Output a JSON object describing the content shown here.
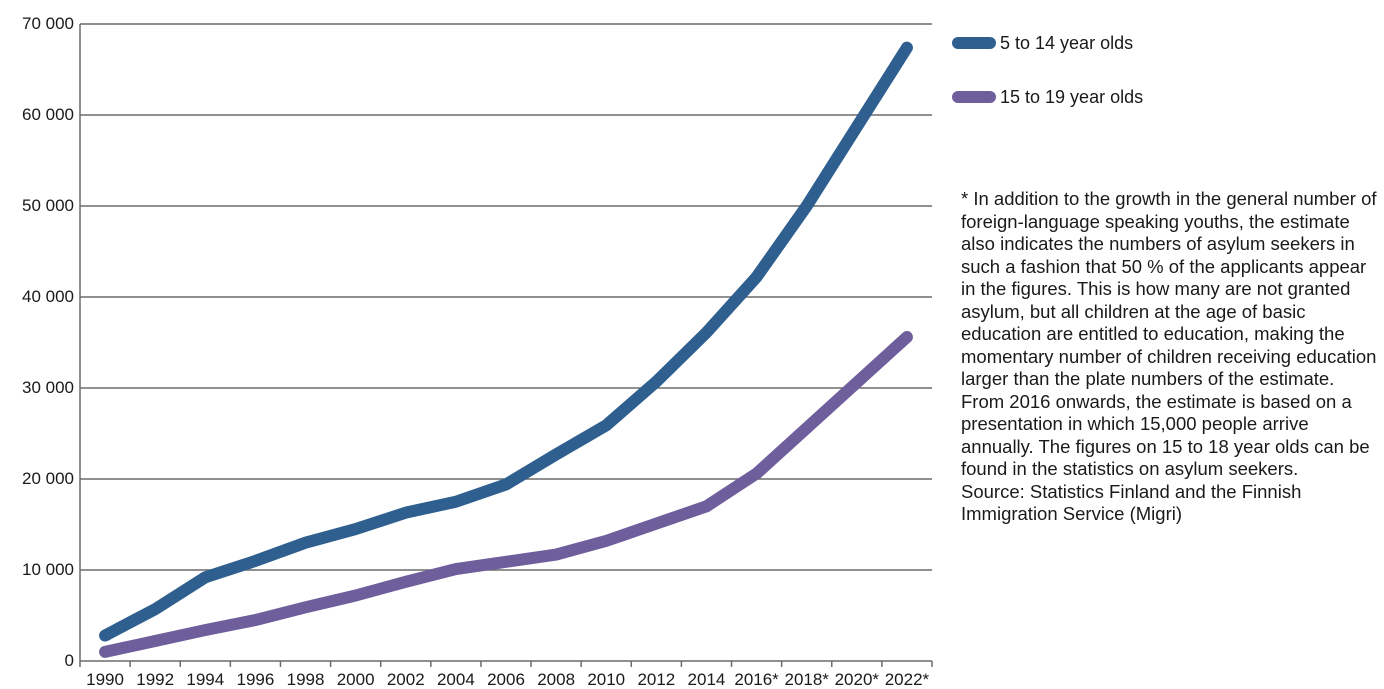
{
  "chart_data": {
    "type": "line",
    "title": "",
    "xlabel": "",
    "ylabel": "",
    "categories": [
      "1990",
      "1992",
      "1994",
      "1996",
      "1998",
      "2000",
      "2002",
      "2004",
      "2006",
      "2008",
      "2010",
      "2012",
      "2014",
      "2016*",
      "2018*",
      "2020*",
      "2022*"
    ],
    "series": [
      {
        "name": "5 to 14 year olds",
        "color": "#2e5f8f",
        "values": [
          2800,
          5700,
          9200,
          11000,
          13000,
          14500,
          16300,
          17500,
          19400,
          22700,
          25900,
          30700,
          36100,
          42200,
          50000,
          58700,
          67400
        ]
      },
      {
        "name": "15 to 19 year olds",
        "color": "#6e5e9c",
        "values": [
          1000,
          2200,
          3400,
          4500,
          5900,
          7200,
          8700,
          10100,
          10900,
          11700,
          13200,
          15100,
          17000,
          20600,
          25600,
          30600,
          35600
        ]
      }
    ],
    "ylim": [
      0,
      70000
    ],
    "yticks": [
      0,
      10000,
      20000,
      30000,
      40000,
      50000,
      60000,
      70000
    ],
    "ytick_labels": [
      "0",
      "10 000",
      "20 000",
      "30 000",
      "40 000",
      "50 000",
      "60 000",
      "70 000"
    ],
    "grid": "horizontal",
    "legend_position": "right"
  },
  "note": {
    "text": "* In addition to the growth in the general number of foreign-language speaking youths, the estimate also indicates the numbers of asylum seekers in such a fashion that 50 % of the applicants appear in the figures. This is how many are not granted asylum, but all children at the age of basic education are entitled to education, making the momentary number of children receiving education larger than the plate numbers of the estimate. From 2016 onwards, the estimate is based on a presentation in which 15,000 people arrive annually. The figures on 15 to 18 year olds can be found in the statistics on asylum seekers.",
    "source": "Source: Statistics Finland and the Finnish Immigration Service (Migri)"
  }
}
